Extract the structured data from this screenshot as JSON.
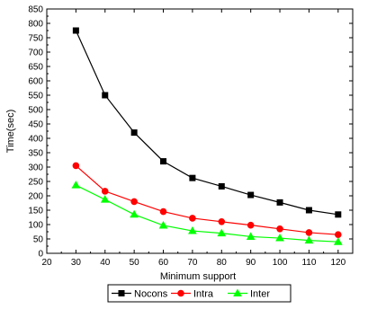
{
  "chart_data": {
    "type": "line",
    "title": "",
    "xlabel": "Minimum support",
    "ylabel": "Time(sec)",
    "xlim": [
      20,
      125
    ],
    "ylim": [
      0,
      850
    ],
    "xticks": [
      20,
      30,
      40,
      50,
      60,
      70,
      80,
      90,
      100,
      110,
      120
    ],
    "yticks": [
      0,
      50,
      100,
      150,
      200,
      250,
      300,
      350,
      400,
      450,
      500,
      550,
      600,
      650,
      700,
      750,
      800,
      850
    ],
    "x": [
      30,
      40,
      50,
      60,
      70,
      80,
      90,
      100,
      110,
      120
    ],
    "grid": false,
    "legend_position": "bottom",
    "series": [
      {
        "name": "Nocons",
        "color": "#000000",
        "marker": "square",
        "values": [
          775,
          550,
          420,
          320,
          262,
          233,
          203,
          177,
          150,
          135
        ]
      },
      {
        "name": "Intra",
        "color": "#ff0000",
        "marker": "circle",
        "values": [
          305,
          216,
          180,
          145,
          122,
          110,
          98,
          85,
          72,
          65
        ]
      },
      {
        "name": "Inter",
        "color": "#00ff00",
        "marker": "triangle",
        "values": [
          237,
          187,
          135,
          97,
          78,
          70,
          58,
          53,
          45,
          40
        ]
      }
    ]
  }
}
